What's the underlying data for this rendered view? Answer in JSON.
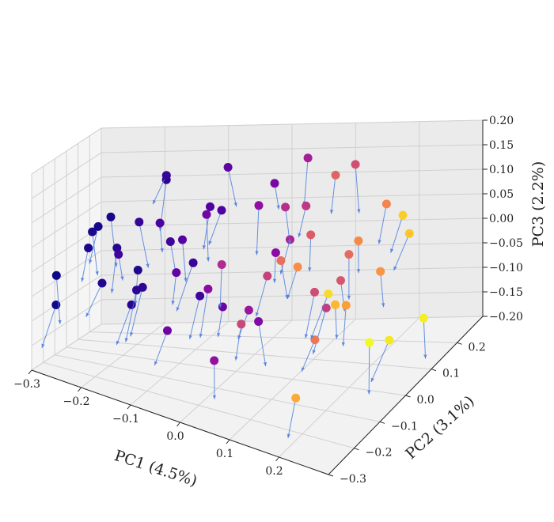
{
  "chart_data": {
    "type": "scatter",
    "projection": "3d",
    "xlabel": "PC1 (4.5%)",
    "ylabel": "PC2 (3.1%)",
    "zlabel": "PC3 (2.2%)",
    "xlim": [
      -0.3,
      0.3
    ],
    "ylim": [
      -0.3,
      0.3
    ],
    "zlim": [
      -0.2,
      0.2
    ],
    "xticks": [
      "−0.3",
      "−0.2",
      "−0.1",
      "0.0",
      "0.1",
      "0.2"
    ],
    "xtick_values": [
      -0.3,
      -0.2,
      -0.1,
      0.0,
      0.1,
      0.2
    ],
    "yticks": [
      "−0.3",
      "−0.2",
      "−0.1",
      "0.0",
      "0.1",
      "0.2"
    ],
    "ytick_values": [
      -0.3,
      -0.2,
      -0.1,
      0.0,
      0.1,
      0.2
    ],
    "zticks": [
      "−0.20",
      "−0.15",
      "−0.10",
      "−0.05",
      "0.00",
      "0.05",
      "0.10",
      "0.15",
      "0.20"
    ],
    "ztick_values": [
      -0.2,
      -0.15,
      -0.1,
      -0.05,
      0.0,
      0.05,
      0.1,
      0.15,
      0.2
    ],
    "grid": true,
    "colormap": "plasma",
    "arrow_color": "#4f7fe0",
    "note": "",
    "points": [
      [
        -0.22,
        -0.1,
        0.08,
        0.02
      ],
      [
        -0.18,
        -0.12,
        0.05,
        0.05
      ],
      [
        -0.25,
        -0.05,
        0.02,
        0.03
      ],
      [
        -0.2,
        -0.15,
        -0.02,
        0.04
      ],
      [
        -0.15,
        -0.08,
        0.1,
        0.08
      ],
      [
        -0.12,
        -0.2,
        0.0,
        0.06
      ],
      [
        -0.28,
        -0.18,
        -0.08,
        0.01
      ],
      [
        -0.16,
        -0.02,
        -0.05,
        0.07
      ],
      [
        -0.1,
        -0.12,
        0.12,
        0.12
      ],
      [
        -0.08,
        -0.05,
        0.07,
        0.15
      ],
      [
        -0.13,
        0.05,
        0.03,
        0.1
      ],
      [
        -0.19,
        0.02,
        -0.1,
        0.05
      ],
      [
        -0.05,
        -0.18,
        0.05,
        0.18
      ],
      [
        -0.02,
        -0.1,
        0.15,
        0.22
      ],
      [
        -0.07,
        0.08,
        0.1,
        0.14
      ],
      [
        -0.11,
        0.12,
        -0.03,
        0.09
      ],
      [
        -0.24,
        0.08,
        0.06,
        0.02
      ],
      [
        -0.21,
        0.15,
        -0.06,
        0.04
      ],
      [
        -0.14,
        -0.25,
        0.08,
        0.11
      ],
      [
        -0.03,
        0.02,
        -0.08,
        0.2
      ],
      [
        0.0,
        -0.15,
        0.02,
        0.28
      ],
      [
        0.02,
        0.06,
        0.12,
        0.3
      ],
      [
        -0.06,
        0.15,
        0.16,
        0.17
      ],
      [
        0.04,
        -0.05,
        -0.05,
        0.33
      ],
      [
        0.06,
        0.1,
        0.04,
        0.38
      ],
      [
        0.03,
        -0.2,
        -0.1,
        0.31
      ],
      [
        0.08,
        0.02,
        0.14,
        0.42
      ],
      [
        0.01,
        0.18,
        -0.02,
        0.29
      ],
      [
        0.1,
        -0.12,
        0.06,
        0.48
      ],
      [
        0.12,
        0.05,
        -0.04,
        0.52
      ],
      [
        0.07,
        0.15,
        0.09,
        0.45
      ],
      [
        0.14,
        -0.02,
        0.11,
        0.57
      ],
      [
        0.09,
        -0.22,
        0.0,
        0.5
      ],
      [
        0.16,
        0.1,
        0.02,
        0.62
      ],
      [
        0.11,
        0.2,
        -0.08,
        0.55
      ],
      [
        0.18,
        -0.1,
        -0.06,
        0.66
      ],
      [
        0.15,
        -0.18,
        0.13,
        0.64
      ],
      [
        0.2,
        0.04,
        0.08,
        0.72
      ],
      [
        0.13,
        0.12,
        0.17,
        0.6
      ],
      [
        0.22,
        -0.06,
        0.0,
        0.78
      ],
      [
        0.19,
        0.16,
        -0.04,
        0.75
      ],
      [
        0.24,
        -0.15,
        0.05,
        0.84
      ],
      [
        0.21,
        -0.25,
        -0.1,
        0.81
      ],
      [
        0.26,
        0.08,
        0.12,
        0.9
      ],
      [
        0.23,
        0.18,
        0.03,
        0.88
      ],
      [
        0.28,
        -0.02,
        -0.08,
        0.96
      ],
      [
        0.25,
        -0.2,
        0.1,
        0.93
      ],
      [
        0.27,
        0.14,
        -0.12,
        0.98
      ],
      [
        -0.17,
        0.18,
        0.12,
        0.06
      ],
      [
        -0.09,
        0.22,
        0.05,
        0.13
      ],
      [
        -0.01,
        0.24,
        0.1,
        0.24
      ],
      [
        0.05,
        0.22,
        0.16,
        0.36
      ],
      [
        -0.26,
        -0.26,
        0.0,
        0.0
      ],
      [
        -0.04,
        -0.26,
        -0.04,
        0.21
      ],
      [
        0.17,
        0.24,
        0.06,
        0.7
      ],
      [
        0.29,
        -0.12,
        -0.03,
        1.0
      ],
      [
        -0.2,
        -0.22,
        0.1,
        0.03
      ],
      [
        -0.12,
        0.2,
        -0.12,
        0.1
      ],
      [
        0.0,
        0.12,
        -0.14,
        0.26
      ],
      [
        0.12,
        0.24,
        0.14,
        0.53
      ],
      [
        0.2,
        -0.22,
        0.15,
        0.73
      ],
      [
        0.06,
        -0.24,
        0.12,
        0.4
      ],
      [
        -0.15,
        0.1,
        0.15,
        0.08
      ],
      [
        0.1,
        0.16,
        -0.12,
        0.47
      ]
    ]
  }
}
